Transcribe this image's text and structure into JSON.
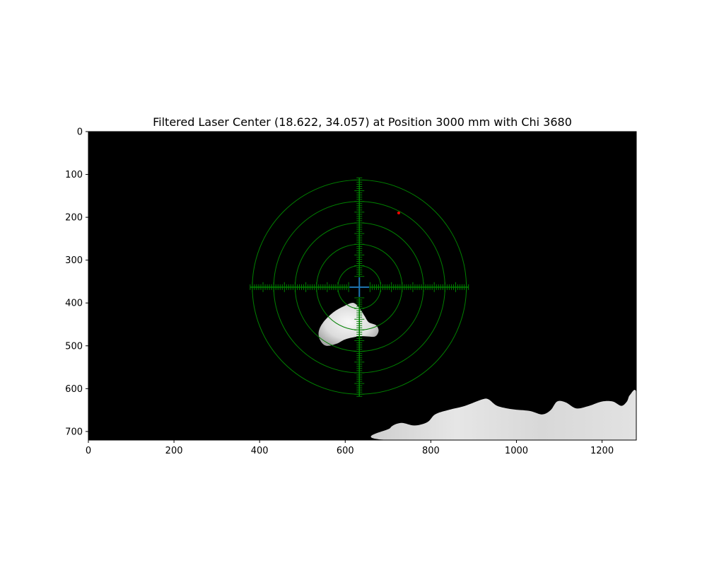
{
  "chart_data": {
    "type": "image",
    "title": "Filtered Laser Center (18.622, 34.057) at Position 3000 mm with Chi 3680",
    "xlim": [
      0,
      1280
    ],
    "ylim": [
      720,
      0
    ],
    "xticks": [
      0,
      200,
      400,
      600,
      800,
      1000,
      1200
    ],
    "yticks": [
      0,
      100,
      200,
      300,
      400,
      500,
      600,
      700
    ],
    "background_color": "#000000",
    "reticle": {
      "color": "#008000",
      "center": [
        633,
        363
      ],
      "ring_radii": [
        50,
        100,
        150,
        200,
        250
      ],
      "arm_extent": 255,
      "center_gap": 25,
      "tick_spacing": 5
    },
    "laser_center_marker": {
      "x": 633,
      "y": 363,
      "color": "#1f77b4",
      "marker": "+"
    },
    "red_point": {
      "x": 725,
      "y": 190,
      "color": "#ff0000"
    },
    "blobs": [
      {
        "name": "reflection-blob",
        "outline": [
          [
            620,
            400
          ],
          [
            598,
            407
          ],
          [
            572,
            422
          ],
          [
            548,
            446
          ],
          [
            538,
            468
          ],
          [
            542,
            488
          ],
          [
            556,
            500
          ],
          [
            580,
            495
          ],
          [
            600,
            485
          ],
          [
            630,
            478
          ],
          [
            650,
            478
          ],
          [
            670,
            478
          ],
          [
            678,
            465
          ],
          [
            672,
            452
          ],
          [
            655,
            445
          ],
          [
            645,
            430
          ],
          [
            635,
            415
          ]
        ]
      },
      {
        "name": "floor-highlight",
        "outline": [
          [
            703,
            720
          ],
          [
            705,
            692
          ],
          [
            730,
            680
          ],
          [
            762,
            686
          ],
          [
            792,
            678
          ],
          [
            810,
            660
          ],
          [
            840,
            650
          ],
          [
            880,
            640
          ],
          [
            920,
            625
          ],
          [
            935,
            625
          ],
          [
            955,
            640
          ],
          [
            990,
            648
          ],
          [
            1030,
            652
          ],
          [
            1060,
            660
          ],
          [
            1080,
            650
          ],
          [
            1095,
            630
          ],
          [
            1115,
            632
          ],
          [
            1140,
            646
          ],
          [
            1170,
            640
          ],
          [
            1200,
            630
          ],
          [
            1225,
            630
          ],
          [
            1245,
            640
          ],
          [
            1258,
            630
          ],
          [
            1265,
            615
          ],
          [
            1280,
            610
          ],
          [
            1280,
            720
          ]
        ]
      }
    ]
  }
}
